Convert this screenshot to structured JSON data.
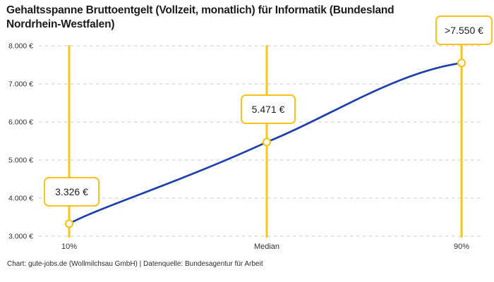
{
  "header": {
    "title_line1": "Gehaltsspanne Bruttoentgelt (Vollzeit, monatlich) für Informatik (Bundesland",
    "title_line2": "Nordrhein-Westfalen)"
  },
  "footer": {
    "credit": "Chart: gute-jobs.de (Wollmilchsau GmbH) | Datenquelle: Bundesagentur für Arbeit"
  },
  "colors": {
    "accent_yellow": "#FCC419",
    "line_blue": "#1F3FAD",
    "grid_gray": "#CBCBCB",
    "text_dark": "#1C1C1C"
  },
  "chart_data": {
    "type": "line",
    "title": "Gehaltsspanne Bruttoentgelt (Vollzeit, monatlich) für Informatik (Bundesland Nordrhein-Westfalen)",
    "categories": [
      "10%",
      "Median",
      "90%"
    ],
    "values": [
      3326,
      5471,
      7550
    ],
    "value_labels": [
      "3.326 €",
      "5.471 €",
      ">7.550 €"
    ],
    "x_labels": [
      "10%",
      "Median",
      "90%"
    ],
    "y_axis": {
      "min": 3000,
      "max": 8000,
      "step": 1000,
      "tick_labels": [
        "8.000 €",
        "7.000 €",
        "6.000 €",
        "5.000 €",
        "4.000 €",
        "3.000 €"
      ]
    },
    "ylim": [
      3000,
      8000
    ],
    "grid": "horizontal-dashed",
    "legend": "none"
  }
}
